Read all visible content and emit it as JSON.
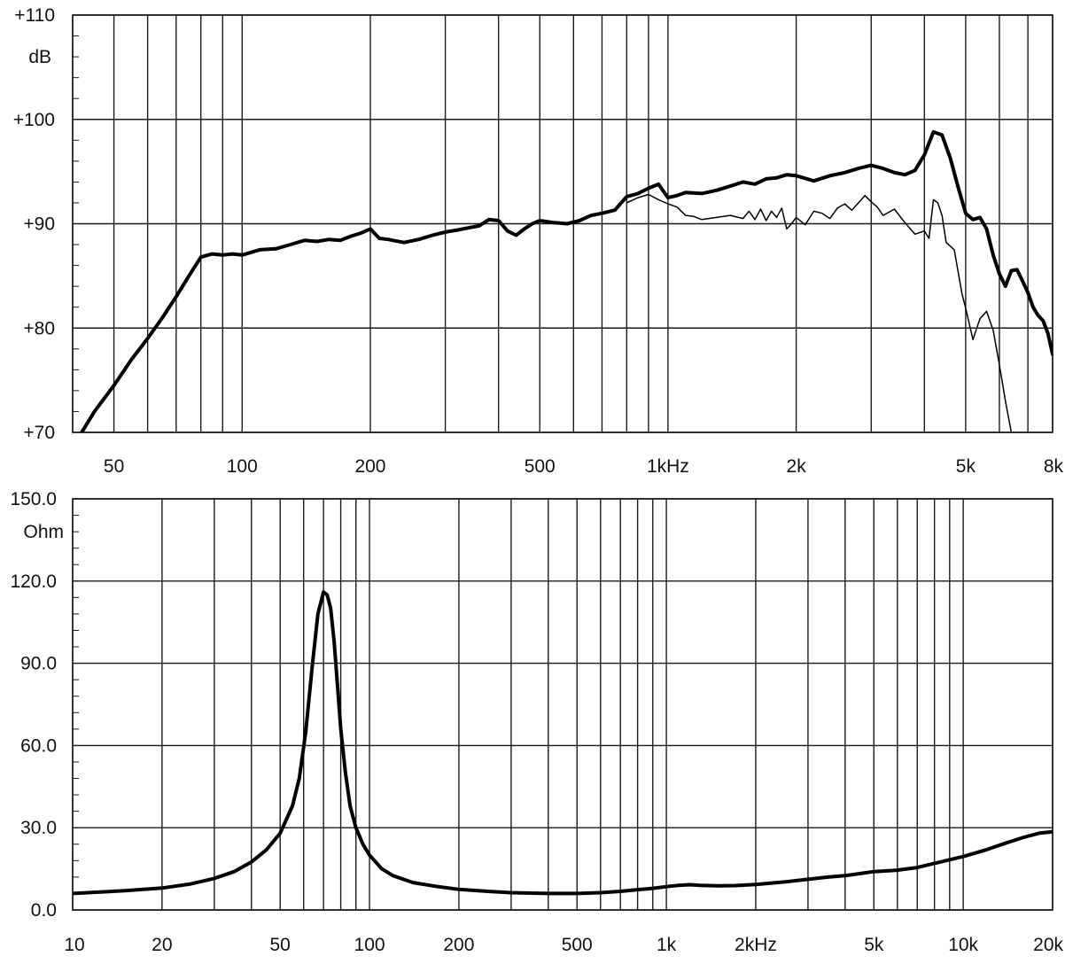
{
  "chart_data": [
    {
      "type": "line",
      "title": "",
      "xlabel": "",
      "ylabel": "dB",
      "x_scale": "log",
      "xlim": [
        40,
        8000
      ],
      "ylim": [
        70,
        110
      ],
      "grid": true,
      "y_tick_labels": [
        {
          "value": 110,
          "label": "+110"
        },
        {
          "value": 100,
          "label": "+100"
        },
        {
          "value": 90,
          "label": "+90"
        },
        {
          "value": 80,
          "label": "+80"
        },
        {
          "value": 70,
          "label": "+70"
        }
      ],
      "x_tick_labels": [
        {
          "value": 50,
          "label": "50"
        },
        {
          "value": 100,
          "label": "100"
        },
        {
          "value": 200,
          "label": "200"
        },
        {
          "value": 500,
          "label": "500"
        },
        {
          "value": 1000,
          "label": "1kHz"
        },
        {
          "value": 2000,
          "label": "2k"
        },
        {
          "value": 5000,
          "label": "5k"
        },
        {
          "value": 8000,
          "label": "8k"
        }
      ],
      "series": [
        {
          "style": "thick",
          "x": [
            42,
            45,
            50,
            55,
            60,
            65,
            70,
            75,
            80,
            85,
            90,
            95,
            100,
            110,
            120,
            130,
            140,
            150,
            160,
            170,
            180,
            190,
            200,
            210,
            220,
            240,
            260,
            280,
            300,
            320,
            340,
            360,
            380,
            400,
            420,
            440,
            460,
            480,
            500,
            540,
            580,
            620,
            660,
            700,
            750,
            800,
            850,
            900,
            950,
            1000,
            1050,
            1100,
            1200,
            1300,
            1400,
            1500,
            1600,
            1700,
            1800,
            1900,
            2000,
            2200,
            2400,
            2600,
            2800,
            3000,
            3200,
            3400,
            3600,
            3800,
            4000,
            4200,
            4400,
            4600,
            4800,
            5000,
            5200,
            5400,
            5600,
            5800,
            6000,
            6200,
            6400,
            6600,
            6800,
            7000,
            7200,
            7400,
            7600,
            7800,
            8000
          ],
          "y": [
            70,
            72,
            74.5,
            77,
            79,
            81,
            83,
            85,
            86.8,
            87.1,
            87.0,
            87.1,
            87.0,
            87.5,
            87.6,
            88.0,
            88.4,
            88.3,
            88.5,
            88.4,
            88.8,
            89.1,
            89.5,
            88.6,
            88.5,
            88.2,
            88.5,
            88.9,
            89.2,
            89.4,
            89.6,
            89.8,
            90.4,
            90.3,
            89.3,
            88.9,
            89.5,
            90.0,
            90.3,
            90.1,
            90.0,
            90.3,
            90.8,
            91.0,
            91.3,
            92.6,
            92.9,
            93.4,
            93.8,
            92.5,
            92.7,
            93.0,
            92.9,
            93.2,
            93.6,
            94.0,
            93.8,
            94.3,
            94.4,
            94.7,
            94.6,
            94.1,
            94.6,
            94.9,
            95.3,
            95.6,
            95.3,
            94.9,
            94.7,
            95.1,
            96.6,
            98.8,
            98.5,
            96.3,
            93.5,
            91.0,
            90.4,
            90.6,
            89.5,
            87.0,
            85.2,
            84.0,
            85.5,
            85.6,
            84.5,
            83.4,
            82.0,
            81.2,
            80.7,
            79.5,
            77.5
          ]
        },
        {
          "style": "thin",
          "x": [
            800,
            850,
            900,
            950,
            1000,
            1050,
            1100,
            1150,
            1200,
            1300,
            1400,
            1500,
            1550,
            1600,
            1650,
            1700,
            1750,
            1800,
            1850,
            1900,
            1950,
            2000,
            2100,
            2200,
            2300,
            2400,
            2500,
            2600,
            2700,
            2800,
            2900,
            3000,
            3100,
            3200,
            3400,
            3600,
            3800,
            4000,
            4100,
            4200,
            4300,
            4400,
            4500,
            4700,
            4900,
            5000,
            5200,
            5400,
            5600,
            5800,
            6000,
            6200,
            6400
          ],
          "y": [
            92.0,
            92.5,
            92.8,
            92.3,
            91.9,
            91.6,
            90.8,
            90.7,
            90.4,
            90.6,
            90.8,
            90.5,
            91.2,
            90.4,
            91.4,
            90.3,
            91.2,
            90.6,
            91.5,
            89.5,
            90.0,
            90.6,
            89.9,
            91.2,
            91.0,
            90.5,
            91.5,
            91.9,
            91.3,
            92.0,
            92.7,
            92.1,
            91.6,
            90.8,
            91.4,
            90.1,
            89.0,
            89.3,
            88.6,
            92.3,
            92.0,
            90.8,
            88.2,
            87.5,
            83.3,
            81.9,
            78.9,
            80.9,
            81.6,
            79.8,
            76.5,
            73.0,
            70.0
          ]
        }
      ]
    },
    {
      "type": "line",
      "title": "",
      "xlabel": "",
      "ylabel": "Ohm",
      "x_scale": "log",
      "xlim": [
        10,
        20000
      ],
      "ylim": [
        0,
        150
      ],
      "grid": true,
      "y_tick_labels": [
        {
          "value": 150,
          "label": "150.0"
        },
        {
          "value": 120,
          "label": "120.0"
        },
        {
          "value": 90,
          "label": "90.0"
        },
        {
          "value": 60,
          "label": "60.0"
        },
        {
          "value": 30,
          "label": "30.0"
        },
        {
          "value": 0,
          "label": "0.0"
        }
      ],
      "x_tick_labels": [
        {
          "value": 10,
          "label": "10"
        },
        {
          "value": 20,
          "label": "20"
        },
        {
          "value": 50,
          "label": "50"
        },
        {
          "value": 100,
          "label": "100"
        },
        {
          "value": 200,
          "label": "200"
        },
        {
          "value": 500,
          "label": "500"
        },
        {
          "value": 1000,
          "label": "1k"
        },
        {
          "value": 2000,
          "label": "2kHz"
        },
        {
          "value": 5000,
          "label": "5k"
        },
        {
          "value": 10000,
          "label": "10k"
        },
        {
          "value": 20000,
          "label": "20k"
        }
      ],
      "series": [
        {
          "style": "thick",
          "x": [
            10,
            15,
            20,
            25,
            30,
            35,
            40,
            45,
            50,
            55,
            58,
            61,
            64,
            67,
            70,
            72,
            74,
            76,
            78,
            80,
            83,
            86,
            90,
            95,
            100,
            110,
            120,
            140,
            170,
            200,
            250,
            300,
            400,
            500,
            600,
            700,
            800,
            900,
            1000,
            1100,
            1200,
            1300,
            1500,
            1700,
            2000,
            2500,
            3000,
            3500,
            4000,
            4500,
            5000,
            6000,
            7000,
            8000,
            10000,
            12000,
            14000,
            16000,
            18000,
            20000
          ],
          "y": [
            6,
            7,
            8,
            9.5,
            11.5,
            14,
            17.5,
            22,
            28,
            38,
            48,
            65,
            88,
            108,
            116,
            115,
            110,
            98,
            82,
            66,
            50,
            38,
            30,
            24,
            20,
            15,
            12.5,
            10,
            8.5,
            7.5,
            6.8,
            6.3,
            6.0,
            6.0,
            6.3,
            6.8,
            7.4,
            7.9,
            8.5,
            9.0,
            9.2,
            9.0,
            8.8,
            8.9,
            9.3,
            10.2,
            11.2,
            12.0,
            12.5,
            13.3,
            14.0,
            14.5,
            15.5,
            17.0,
            19.5,
            22.0,
            24.5,
            26.5,
            28.0,
            28.5
          ]
        }
      ]
    }
  ]
}
